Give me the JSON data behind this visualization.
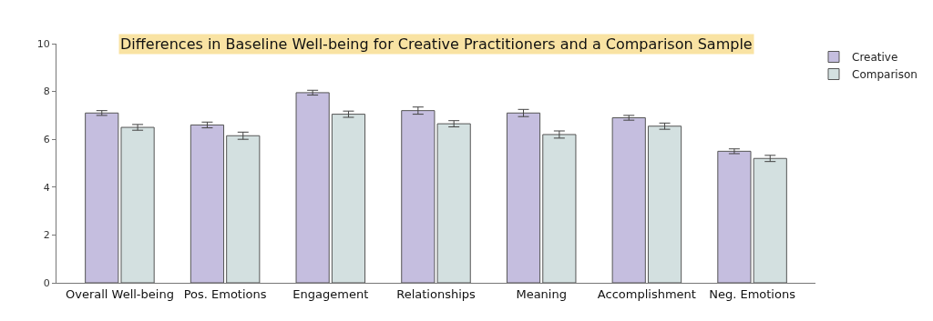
{
  "chart_data": {
    "type": "bar",
    "title": "Differences in Baseline Well-being for Creative Practitioners and a Comparison Sample",
    "categories": [
      "Overall Well-being",
      "Pos. Emotions",
      "Engagement",
      "Relationships",
      "Meaning",
      "Accomplishment",
      "Neg. Emotions"
    ],
    "series": [
      {
        "name": "Creative",
        "color": "#c5bedf",
        "values": [
          7.1,
          6.6,
          7.95,
          7.2,
          7.1,
          6.9,
          5.5
        ],
        "errors": [
          0.1,
          0.12,
          0.1,
          0.15,
          0.15,
          0.1,
          0.1
        ]
      },
      {
        "name": "Comparison",
        "color": "#d3e0e0",
        "values": [
          6.5,
          6.15,
          7.05,
          6.65,
          6.2,
          6.55,
          5.2
        ],
        "errors": [
          0.12,
          0.15,
          0.13,
          0.13,
          0.15,
          0.13,
          0.13
        ]
      }
    ],
    "ylim": [
      0,
      10
    ],
    "yticks": [
      0,
      2,
      4,
      6,
      8,
      10
    ],
    "grid": false,
    "legend": "top right"
  }
}
